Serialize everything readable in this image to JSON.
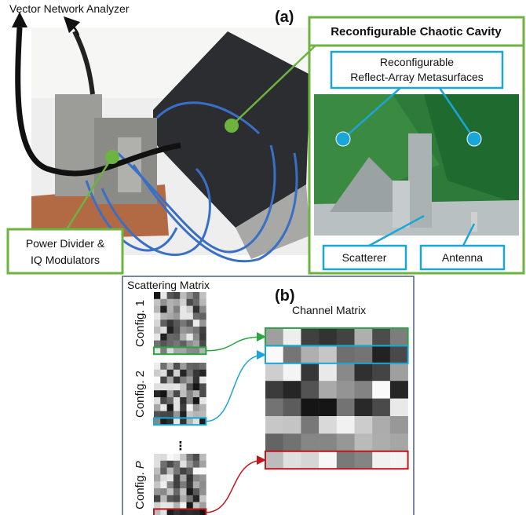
{
  "panel_a": {
    "label": "(a)",
    "vna": "Vector Network Analyzer",
    "cavity_title": "Reconfigurable Chaotic Cavity",
    "metasurfaces": [
      "Reconfigurable",
      "Reflect-Array Metasurfaces"
    ],
    "scatterer": "Scatterer",
    "antenna": "Antenna",
    "power_divider": [
      "Power Divider &",
      "IQ Modulators"
    ]
  },
  "panel_b": {
    "label": "(b)",
    "scattering_title": "Scattering Matrix",
    "channel_title": "Channel Matrix",
    "configs": [
      {
        "prefix": "Config.",
        "index": "1"
      },
      {
        "prefix": "Config.",
        "index": "2"
      },
      {
        "prefix": "Config.",
        "index": "P"
      }
    ],
    "ellipsis": "⋮"
  }
}
